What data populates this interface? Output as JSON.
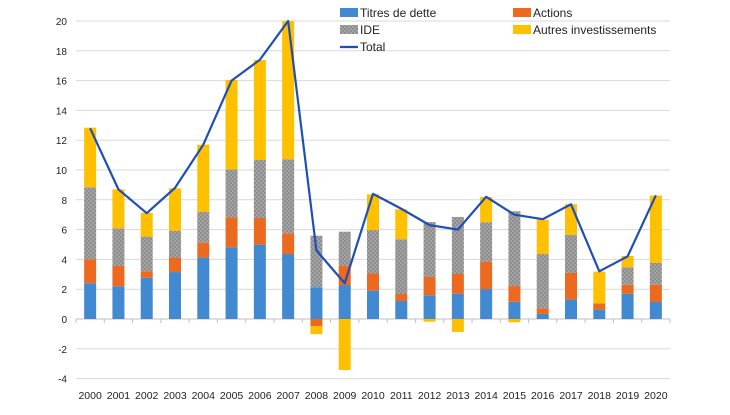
{
  "chart_data": {
    "type": "bar",
    "stacked": true,
    "title": "",
    "xlabel": "",
    "ylabel": "",
    "ylim": [
      -4,
      20
    ],
    "yticks": [
      -4,
      -2,
      0,
      2,
      4,
      6,
      8,
      10,
      12,
      14,
      16,
      18,
      20
    ],
    "grid": true,
    "legend_position": "top",
    "categories": [
      "2000",
      "2001",
      "2002",
      "2003",
      "2004",
      "2005",
      "2006",
      "2007",
      "2008",
      "2009",
      "2010",
      "2011",
      "2012",
      "2013",
      "2014",
      "2015",
      "2016",
      "2017",
      "2018",
      "2019",
      "2020"
    ],
    "series": [
      {
        "name": "Titres de dette",
        "kind": "bar",
        "color": "#4189d0",
        "values": [
          2.4,
          2.2,
          2.77,
          3.15,
          4.12,
          4.81,
          4.99,
          4.36,
          2.13,
          2.28,
          1.9,
          1.21,
          1.59,
          1.7,
          2.01,
          1.16,
          0.34,
          1.3,
          0.63,
          1.7,
          1.14
        ]
      },
      {
        "name": "Actions",
        "kind": "bar",
        "color": "#ec6a1f",
        "values": [
          1.6,
          1.36,
          0.43,
          0.97,
          1.0,
          2.01,
          1.79,
          1.39,
          -0.47,
          1.3,
          1.16,
          0.47,
          1.23,
          1.32,
          1.84,
          1.05,
          0.38,
          1.79,
          0.42,
          0.6,
          1.16
        ]
      },
      {
        "name": "IDE",
        "kind": "bar",
        "color": "#9c9c9c",
        "values": [
          4.84,
          2.52,
          2.33,
          1.81,
          2.06,
          3.22,
          3.89,
          4.97,
          3.46,
          2.28,
          2.91,
          3.67,
          3.69,
          3.83,
          2.64,
          5.02,
          3.64,
          2.55,
          0,
          1.17,
          1.46
        ]
      },
      {
        "name": "Autres investissements",
        "kind": "bar",
        "color": "#ffc000",
        "values": [
          4.0,
          2.62,
          1.6,
          2.84,
          4.52,
          6.0,
          6.71,
          9.28,
          -0.54,
          -3.42,
          2.4,
          2.01,
          -0.18,
          -0.87,
          1.7,
          -0.22,
          2.31,
          2.06,
          2.13,
          0.76,
          4.52
        ]
      },
      {
        "name": "Total",
        "kind": "line",
        "color": "#1f4eb8",
        "values": [
          12.8,
          8.7,
          7.1,
          8.8,
          11.7,
          16.0,
          17.4,
          20.0,
          4.6,
          2.4,
          8.4,
          7.4,
          6.3,
          6.0,
          8.2,
          7.0,
          6.7,
          7.7,
          3.2,
          4.2,
          8.3
        ]
      }
    ]
  }
}
